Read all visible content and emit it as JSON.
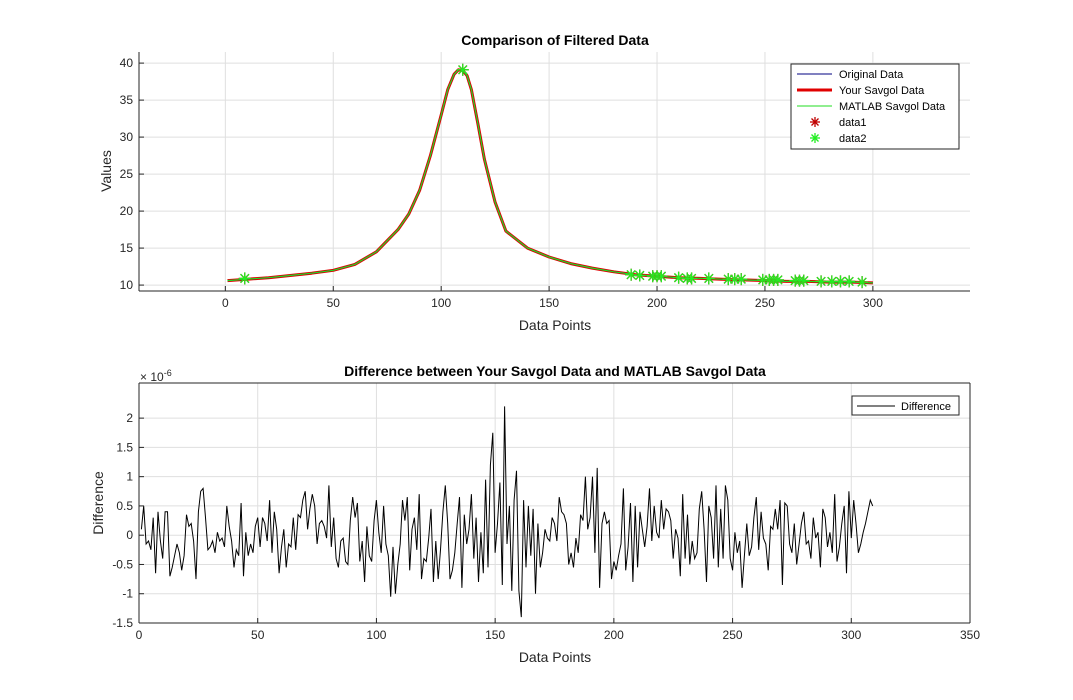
{
  "chart_data": [
    {
      "type": "line",
      "title": "Comparison of Filtered Data",
      "xlabel": "Data Points",
      "ylabel": "Values",
      "xlim": [
        -40,
        345
      ],
      "ylim": [
        9.2,
        41.5
      ],
      "xticks": [
        0,
        50,
        100,
        150,
        200,
        250,
        300
      ],
      "xtick_labels": [
        "0",
        "50",
        "100",
        "150",
        "200",
        "250",
        "300"
      ],
      "yticks": [
        10,
        15,
        20,
        25,
        30,
        35,
        40
      ],
      "ytick_labels": [
        "10",
        "15",
        "20",
        "25",
        "30",
        "35",
        "40"
      ],
      "grid": true,
      "legend_position": "top-right",
      "curve_x": [
        1,
        10,
        20,
        30,
        40,
        50,
        60,
        70,
        80,
        85,
        90,
        95,
        100,
        103,
        106,
        108,
        110,
        112,
        114,
        117,
        120,
        125,
        130,
        140,
        150,
        160,
        170,
        180,
        190,
        200,
        210,
        220,
        230,
        240,
        250,
        260,
        270,
        280,
        290,
        300
      ],
      "curve_y": [
        10.6,
        10.8,
        11.0,
        11.3,
        11.6,
        12.0,
        12.8,
        14.5,
        17.5,
        19.6,
        22.8,
        27.5,
        33.0,
        36.4,
        38.5,
        39.1,
        39.0,
        38.3,
        36.4,
        31.8,
        27.0,
        21.2,
        17.3,
        15.0,
        13.8,
        12.9,
        12.3,
        11.8,
        11.4,
        11.2,
        11.0,
        10.9,
        10.8,
        10.7,
        10.6,
        10.5,
        10.5,
        10.4,
        10.4,
        10.3
      ],
      "markers_x": [
        9,
        110,
        188,
        192,
        198,
        200,
        202,
        210,
        214,
        216,
        224,
        233,
        236,
        239,
        249,
        252,
        254,
        256,
        264,
        266,
        268,
        276,
        281,
        285,
        289,
        295
      ],
      "markers_y": [
        10.9,
        39.1,
        11.4,
        11.3,
        11.2,
        11.2,
        11.2,
        11.0,
        10.9,
        10.9,
        10.9,
        10.8,
        10.8,
        10.8,
        10.7,
        10.7,
        10.7,
        10.7,
        10.6,
        10.6,
        10.6,
        10.5,
        10.5,
        10.5,
        10.5,
        10.4
      ],
      "series": [
        {
          "name": "Original Data",
          "color": "#000080",
          "style": "line"
        },
        {
          "name": "Your Savgol Data",
          "color": "#e00000",
          "style": "thick-line"
        },
        {
          "name": "MATLAB Savgol Data",
          "color": "#22dd22",
          "style": "line"
        },
        {
          "name": "data1",
          "color": "#c00000",
          "style": "star-marker"
        },
        {
          "name": "data2",
          "color": "#22ee22",
          "style": "star-marker"
        }
      ]
    },
    {
      "type": "line",
      "title": "Difference between Your Savgol Data and MATLAB Savgol Data",
      "xlabel": "Data Points",
      "ylabel": "Difference",
      "y_exponent_label": "× 10",
      "y_exponent_power": "-6",
      "xlim": [
        0,
        350
      ],
      "ylim": [
        -1.5,
        2.6
      ],
      "xticks": [
        0,
        50,
        100,
        150,
        200,
        250,
        300,
        350
      ],
      "xtick_labels": [
        "0",
        "50",
        "100",
        "150",
        "200",
        "250",
        "300",
        "350"
      ],
      "yticks": [
        -1.5,
        -1,
        -0.5,
        0,
        0.5,
        1,
        1.5,
        2
      ],
      "ytick_labels": [
        "-1.5",
        "-1",
        "-0.5",
        "0",
        "0.5",
        "1",
        "1.5",
        "2"
      ],
      "grid": true,
      "legend_position": "top-right",
      "series": [
        {
          "name": "Difference",
          "color": "#000000",
          "x_start": 1,
          "values": [
            0.1,
            0.5,
            -0.15,
            -0.1,
            -0.25,
            0.3,
            -0.65,
            0.4,
            -0.1,
            -0.4,
            0.4,
            0.4,
            -0.7,
            -0.55,
            -0.35,
            -0.15,
            -0.3,
            -0.6,
            -0.35,
            0.35,
            0.15,
            0.2,
            -0.1,
            -0.75,
            0.4,
            0.75,
            0.8,
            0.3,
            -0.25,
            -0.2,
            -0.1,
            -0.3,
            0.05,
            -0.1,
            -0.05,
            -0.2,
            0.5,
            0.15,
            -0.1,
            -0.55,
            -0.25,
            -0.35,
            0.55,
            -0.7,
            0.05,
            -0.35,
            -0.15,
            -0.3,
            0.15,
            0.3,
            -0.2,
            0.3,
            0.2,
            -0.1,
            0.6,
            -0.3,
            0.4,
            0.1,
            -0.65,
            -0.2,
            0.1,
            -0.55,
            -0.15,
            -0.2,
            0.3,
            -0.25,
            0.35,
            0.3,
            0.6,
            0.75,
            0.1,
            0.45,
            0.7,
            0.5,
            -0.15,
            0.2,
            0.25,
            0.15,
            -0.05,
            0.85,
            -0.2,
            0.3,
            -0.4,
            -0.55,
            -0.1,
            -0.05,
            -0.45,
            -0.5,
            0.25,
            0.65,
            0.3,
            0.55,
            -0.45,
            -0.1,
            -0.8,
            0.15,
            -0.35,
            -0.45,
            0.25,
            0.6,
            0.05,
            -0.3,
            0.5,
            -0.15,
            -0.35,
            -1.05,
            -0.2,
            -1.0,
            -0.5,
            -0.15,
            0.6,
            0.25,
            0.65,
            -0.6,
            0.1,
            0.3,
            -0.25,
            0.7,
            -0.75,
            -0.4,
            -0.45,
            -0.05,
            0.45,
            -0.8,
            -0.1,
            -0.75,
            -0.25,
            0.4,
            0.85,
            0.2,
            -0.75,
            -0.6,
            -0.3,
            0.2,
            0.65,
            -0.9,
            0.35,
            -0.15,
            0.1,
            0.7,
            -0.4,
            0.3,
            -0.8,
            0.05,
            -0.65,
            0.95,
            -0.55,
            1.2,
            1.75,
            -0.3,
            0.2,
            0.9,
            -0.85,
            2.2,
            -0.15,
            0.5,
            -0.95,
            0.6,
            1.1,
            -0.95,
            -1.4,
            0.6,
            -0.55,
            0.5,
            -0.35,
            0.45,
            -1.0,
            0.2,
            -0.55,
            -0.3,
            0.1,
            -0.05,
            -0.1,
            0.3,
            0.2,
            -0.1,
            0.65,
            0.4,
            0.35,
            0.2,
            -0.5,
            -0.3,
            -0.55,
            -0.05,
            -0.3,
            0.35,
            0.25,
            1.0,
            0.1,
            0.3,
            1.0,
            -0.3,
            1.15,
            -0.9,
            0.2,
            0.4,
            0.2,
            0.25,
            -0.75,
            -0.45,
            -0.6,
            -0.35,
            -0.15,
            0.8,
            -0.6,
            -0.2,
            0.55,
            -0.8,
            0.5,
            -0.55,
            0.4,
            0.1,
            -0.2,
            0.15,
            0.8,
            -0.1,
            0.5,
            0.05,
            -0.05,
            0.6,
            0.1,
            0.45,
            0.4,
            0.25,
            -0.4,
            0.1,
            -0.05,
            -0.7,
            0.7,
            -0.4,
            0.35,
            -0.5,
            -0.1,
            -0.4,
            -0.3,
            0.45,
            0.75,
            0.1,
            -0.8,
            0.5,
            0.3,
            -0.4,
            0.85,
            -0.55,
            0.45,
            -0.4,
            0.85,
            0.6,
            -0.4,
            -0.6,
            0.05,
            -0.3,
            -0.1,
            -0.9,
            -0.35,
            0.2,
            -0.35,
            -0.2,
            0.3,
            0.65,
            -0.25,
            0.4,
            -0.05,
            -0.15,
            -0.6,
            0.15,
            0.1,
            0.45,
            0.1,
            0.6,
            -0.85,
            0.55,
            0.5,
            -0.15,
            -0.3,
            0.2,
            -0.5,
            -0.15,
            0.2,
            0.4,
            -0.15,
            -0.1,
            -0.4,
            0.3,
            -0.05,
            0.05,
            -0.55,
            0.45,
            0.3,
            -0.2,
            0.05,
            -0.3,
            0.7,
            -0.45,
            -0.2,
            0.2,
            0.5,
            -0.65,
            0.75,
            -0.05,
            0.6,
            0.2,
            -0.3,
            -0.15,
            0.05,
            0.2,
            0.4,
            0.6,
            0.5
          ]
        }
      ]
    }
  ]
}
